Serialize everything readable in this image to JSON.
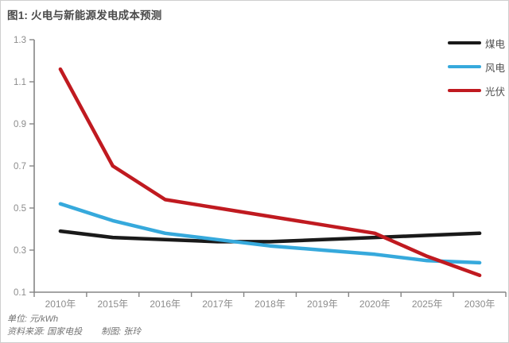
{
  "page": {
    "title": "图1: 火电与新能源发电成本预测"
  },
  "chart_data": {
    "type": "line",
    "title": "图1: 火电与新能源发电成本预测",
    "categories": [
      "2010年",
      "2015年",
      "2016年",
      "2017年",
      "2018年",
      "2019年",
      "2020年",
      "2025年",
      "2030年"
    ],
    "series": [
      {
        "name": "煤电",
        "color": "#1a1a1a",
        "values": [
          0.39,
          0.36,
          0.35,
          0.34,
          0.34,
          0.35,
          0.36,
          0.37,
          0.38
        ]
      },
      {
        "name": "风电",
        "color": "#36a9dc",
        "values": [
          0.52,
          0.44,
          0.38,
          0.35,
          0.32,
          0.3,
          0.28,
          0.25,
          0.24
        ]
      },
      {
        "name": "光伏",
        "color": "#c01a20",
        "values": [
          1.16,
          0.7,
          0.54,
          0.5,
          0.46,
          0.42,
          0.38,
          0.27,
          0.18
        ]
      }
    ],
    "ylim": [
      0.1,
      1.3
    ],
    "ytick_labels": [
      "0.1",
      "0.3",
      "0.5",
      "0.7",
      "0.9",
      "1.1",
      "1.3"
    ],
    "xlabel": "",
    "ylabel": "",
    "grid": false,
    "legend_position": "top-right"
  },
  "footer": {
    "unit_label": "单位: 元/kWh",
    "source_label": "资料来源: 国家电投",
    "credit_label": "制图: 张玲"
  },
  "colors": {
    "axis": "#858585",
    "tick_label": "#8c8c8c",
    "title_text": "#4a4a4a",
    "legend_text": "#4d4d4d",
    "footer_text": "#737373",
    "panel_border": "#cfcfcf"
  }
}
